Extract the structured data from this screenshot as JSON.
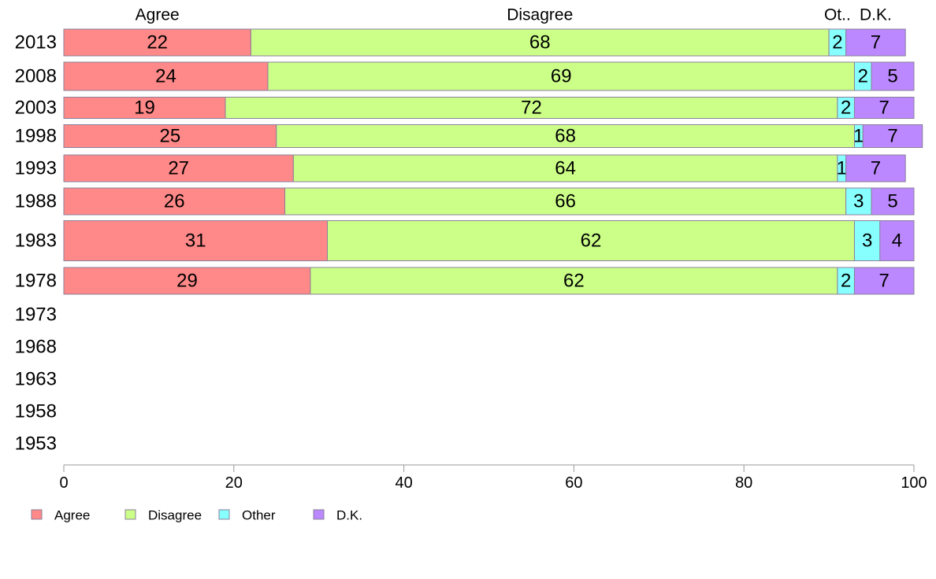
{
  "chart_data": {
    "type": "bar",
    "orientation": "horizontal",
    "stacked": true,
    "categories": [
      "2013",
      "2008",
      "2003",
      "1998",
      "1993",
      "1988",
      "1983",
      "1978",
      "1973",
      "1968",
      "1963",
      "1958",
      "1953"
    ],
    "series": [
      {
        "name": "Agree",
        "color": "#ff8888",
        "values": [
          22,
          24,
          19,
          25,
          27,
          26,
          31,
          29,
          null,
          null,
          null,
          null,
          null
        ]
      },
      {
        "name": "Disagree",
        "color": "#ccff88",
        "values": [
          68,
          69,
          72,
          68,
          64,
          66,
          62,
          62,
          null,
          null,
          null,
          null,
          null
        ]
      },
      {
        "name": "Other",
        "color": "#88ffff",
        "values": [
          2,
          2,
          2,
          1,
          1,
          3,
          3,
          2,
          null,
          null,
          null,
          null,
          null
        ]
      },
      {
        "name": "D.K.",
        "color": "#bb88ff",
        "values": [
          7,
          5,
          7,
          7,
          7,
          5,
          4,
          7,
          null,
          null,
          null,
          null,
          null
        ]
      }
    ],
    "column_headers": [
      "Agree",
      "Disagree",
      "Ot..",
      "D.K."
    ],
    "xlim": [
      0,
      100
    ],
    "xticks": [
      "0",
      "20",
      "40",
      "60",
      "80",
      "100"
    ],
    "legend_position": "bottom-left",
    "grid": false
  }
}
